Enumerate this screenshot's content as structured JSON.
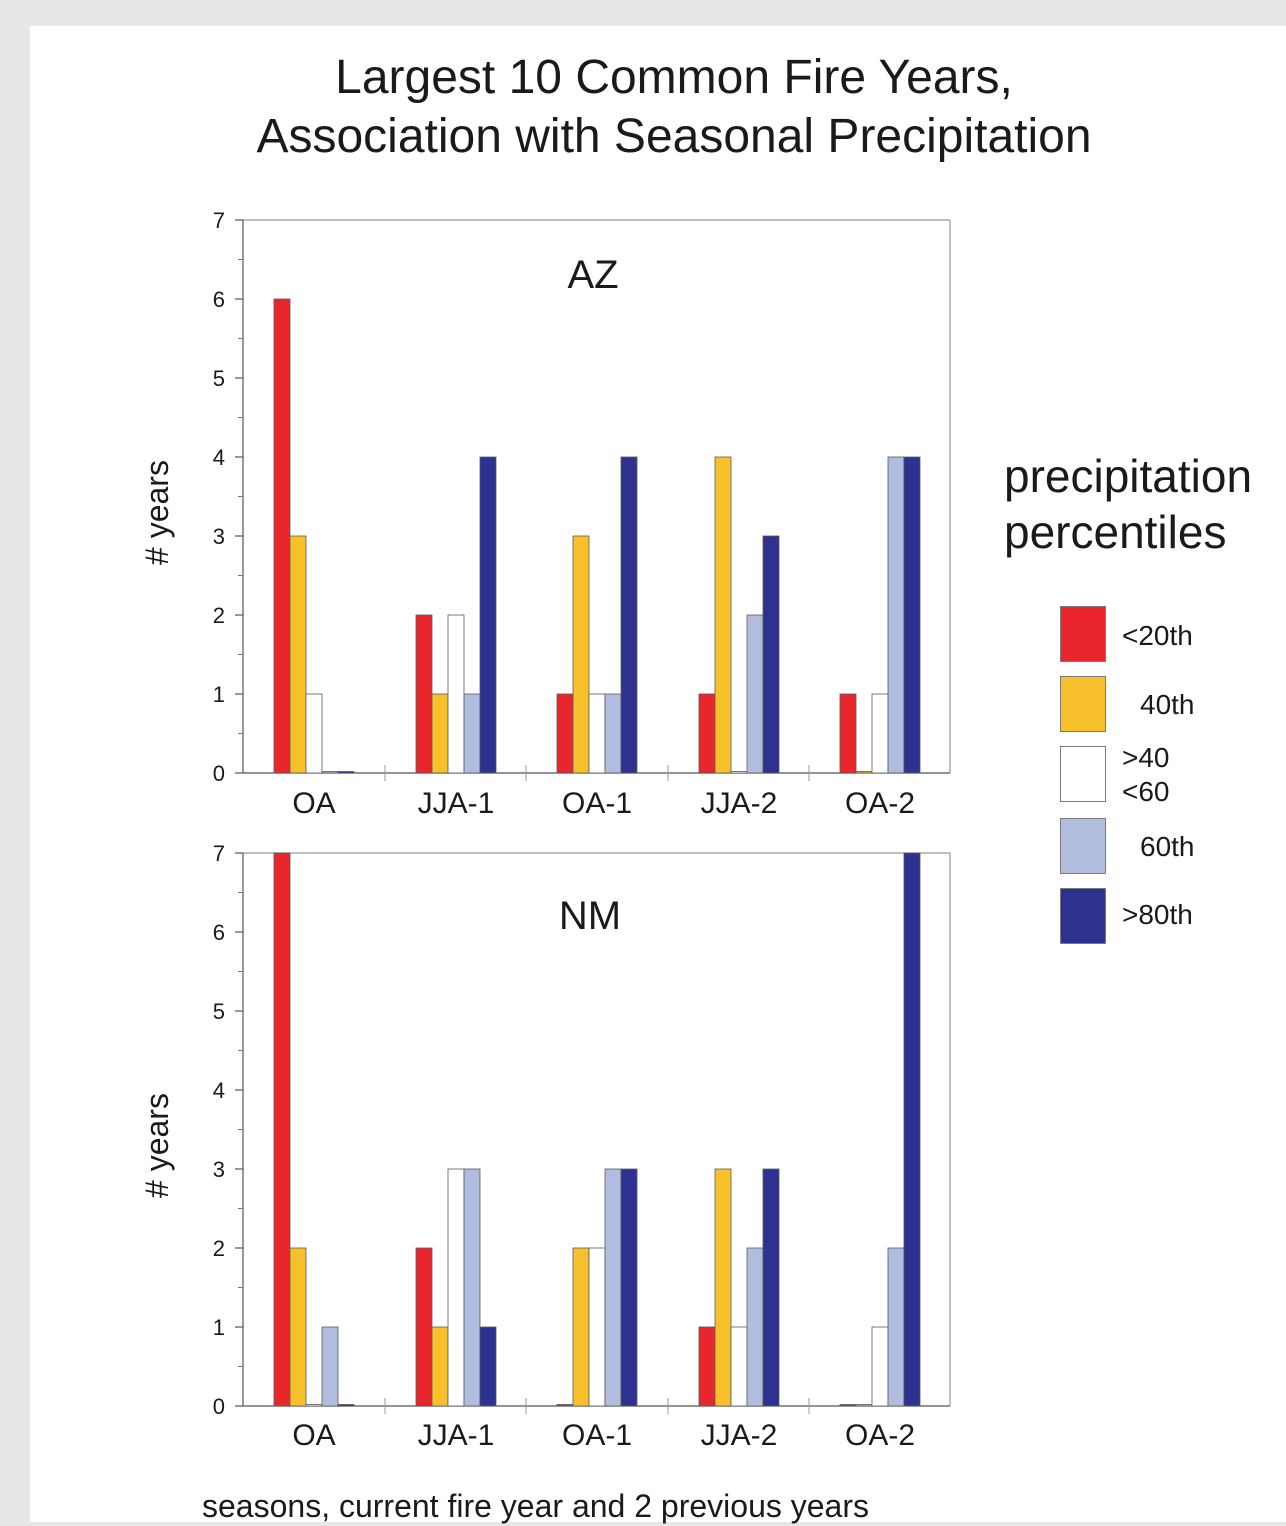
{
  "title_lines": [
    "Largest 10 Common Fire Years,",
    "Association with Seasonal Precipitation"
  ],
  "x_caption": "seasons, current fire year and 2 previous years",
  "legend": {
    "title_lines": [
      "precipitation",
      "percentiles"
    ],
    "items": [
      {
        "label_lines": [
          "<20th"
        ],
        "color": "#e8262c"
      },
      {
        "label_lines": [
          "40th"
        ],
        "color": "#f8c12b"
      },
      {
        "label_lines": [
          ">40",
          "<60"
        ],
        "color": "#ffffff"
      },
      {
        "label_lines": [
          "60th"
        ],
        "color": "#b1bddf"
      },
      {
        "label_lines": [
          ">80th"
        ],
        "color": "#2d3290"
      }
    ]
  },
  "chart_data": [
    {
      "type": "bar",
      "panel_label": "AZ",
      "ylabel": "# years",
      "ylim": [
        0,
        7
      ],
      "yticks": [
        0,
        1,
        2,
        3,
        4,
        5,
        6,
        7
      ],
      "categories": [
        "OA",
        "JJA-1",
        "OA-1",
        "JJA-2",
        "OA-2"
      ],
      "series": [
        {
          "name": "<20th",
          "values": [
            6,
            2,
            1,
            1,
            1
          ]
        },
        {
          "name": "40th",
          "values": [
            3,
            1,
            3,
            4,
            0
          ]
        },
        {
          "name": ">40 <60",
          "values": [
            1,
            2,
            1,
            0,
            1
          ]
        },
        {
          "name": "60th",
          "values": [
            0,
            1,
            1,
            2,
            4
          ]
        },
        {
          "name": ">80th",
          "values": [
            0,
            4,
            4,
            3,
            4
          ]
        }
      ]
    },
    {
      "type": "bar",
      "panel_label": "NM",
      "ylabel": "# years",
      "ylim": [
        0,
        7
      ],
      "yticks": [
        0,
        1,
        2,
        3,
        4,
        5,
        6,
        7
      ],
      "categories": [
        "OA",
        "JJA-1",
        "OA-1",
        "JJA-2",
        "OA-2"
      ],
      "series": [
        {
          "name": "<20th",
          "values": [
            7,
            2,
            0,
            1,
            0
          ]
        },
        {
          "name": "40th",
          "values": [
            2,
            1,
            2,
            3,
            0
          ]
        },
        {
          "name": ">40 <60",
          "values": [
            0,
            3,
            2,
            1,
            1
          ]
        },
        {
          "name": "60th",
          "values": [
            1,
            3,
            3,
            2,
            2
          ]
        },
        {
          "name": ">80th",
          "values": [
            0,
            1,
            3,
            3,
            7
          ]
        }
      ]
    }
  ]
}
